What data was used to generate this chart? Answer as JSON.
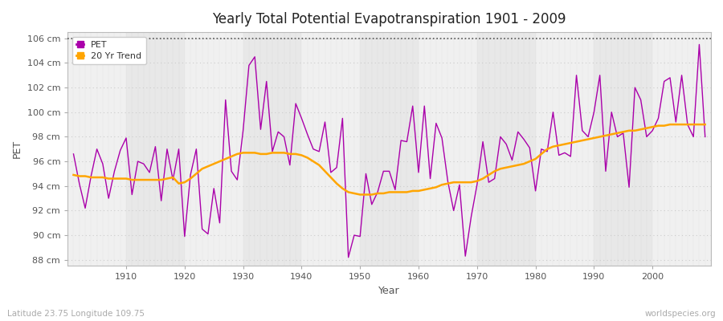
{
  "title": "Yearly Total Potential Evapotranspiration 1901 - 2009",
  "xlabel": "Year",
  "ylabel": "PET",
  "subtitle": "Latitude 23.75 Longitude 109.75",
  "watermark": "worldspecies.org",
  "pet_color": "#AA00AA",
  "trend_color": "#FFA500",
  "background_color": "#FFFFFF",
  "plot_bg_color": "#E8E8E8",
  "col_band_color": "#F0F0F0",
  "ylim": [
    87.5,
    106.5
  ],
  "yticks": [
    88,
    90,
    92,
    94,
    96,
    98,
    100,
    102,
    104,
    106
  ],
  "ytick_labels": [
    "88 cm",
    "90 cm",
    "92 cm",
    "94 cm",
    "96 cm",
    "98 cm",
    "100 cm",
    "102 cm",
    "104 cm",
    "106 cm"
  ],
  "hline_y": 106,
  "xlim": [
    1900,
    2010
  ],
  "xticks": [
    1910,
    1920,
    1930,
    1940,
    1950,
    1960,
    1970,
    1980,
    1990,
    2000
  ],
  "years": [
    1901,
    1902,
    1903,
    1904,
    1905,
    1906,
    1907,
    1908,
    1909,
    1910,
    1911,
    1912,
    1913,
    1914,
    1915,
    1916,
    1917,
    1918,
    1919,
    1920,
    1921,
    1922,
    1923,
    1924,
    1925,
    1926,
    1927,
    1928,
    1929,
    1930,
    1931,
    1932,
    1933,
    1934,
    1935,
    1936,
    1937,
    1938,
    1939,
    1940,
    1941,
    1942,
    1943,
    1944,
    1945,
    1946,
    1947,
    1948,
    1949,
    1950,
    1951,
    1952,
    1953,
    1954,
    1955,
    1956,
    1957,
    1958,
    1959,
    1960,
    1961,
    1962,
    1963,
    1964,
    1965,
    1966,
    1967,
    1968,
    1969,
    1970,
    1971,
    1972,
    1973,
    1974,
    1975,
    1976,
    1977,
    1978,
    1979,
    1980,
    1981,
    1982,
    1983,
    1984,
    1985,
    1986,
    1987,
    1988,
    1989,
    1990,
    1991,
    1992,
    1993,
    1994,
    1995,
    1996,
    1997,
    1998,
    1999,
    2000,
    2001,
    2002,
    2003,
    2004,
    2005,
    2006,
    2007,
    2008,
    2009
  ],
  "pet_values": [
    96.6,
    94.2,
    92.2,
    94.8,
    97.0,
    95.8,
    93.0,
    95.2,
    96.9,
    97.9,
    93.3,
    96.0,
    95.8,
    95.1,
    97.2,
    92.8,
    97.0,
    94.5,
    97.0,
    89.9,
    94.9,
    97.0,
    90.5,
    90.1,
    93.8,
    91.0,
    101.0,
    95.2,
    94.5,
    98.5,
    103.8,
    104.5,
    98.6,
    102.5,
    96.8,
    98.4,
    98.0,
    95.7,
    100.7,
    99.5,
    98.2,
    97.0,
    96.8,
    99.2,
    95.1,
    95.5,
    99.5,
    88.2,
    90.0,
    89.9,
    95.0,
    92.5,
    93.5,
    95.2,
    95.2,
    93.7,
    97.7,
    97.6,
    100.5,
    95.1,
    100.5,
    94.6,
    99.1,
    97.9,
    94.4,
    92.0,
    94.1,
    88.3,
    91.5,
    94.1,
    97.6,
    94.3,
    94.6,
    98.0,
    97.4,
    96.1,
    98.4,
    97.8,
    97.1,
    93.6,
    97.0,
    96.8,
    100.0,
    96.5,
    96.7,
    96.4,
    103.0,
    98.5,
    98.0,
    100.0,
    103.0,
    95.2,
    100.0,
    98.0,
    98.3,
    93.9,
    102.0,
    101.0,
    98.0,
    98.5,
    99.5,
    102.5,
    102.8,
    99.2,
    103.0,
    99.0,
    98.0,
    105.5,
    98.0
  ],
  "trend_years": [
    1901,
    1902,
    1903,
    1904,
    1905,
    1906,
    1907,
    1908,
    1909,
    1910,
    1911,
    1912,
    1913,
    1914,
    1915,
    1916,
    1917,
    1918,
    1919,
    1920,
    1921,
    1922,
    1923,
    1924,
    1925,
    1926,
    1927,
    1928,
    1929,
    1930,
    1931,
    1932,
    1933,
    1934,
    1935,
    1936,
    1937,
    1938,
    1939,
    1940,
    1941,
    1942,
    1943,
    1944,
    1945,
    1946,
    1947,
    1948,
    1949,
    1950,
    1951,
    1952,
    1953,
    1954,
    1955,
    1956,
    1957,
    1958,
    1959,
    1960,
    1961,
    1962,
    1963,
    1964,
    1965,
    1966,
    1967,
    1968,
    1969,
    1970,
    1971,
    1972,
    1973,
    1974,
    1975,
    1976,
    1977,
    1978,
    1979,
    1980,
    1981,
    1982,
    1983,
    1984,
    1985,
    1986,
    1987,
    1988,
    1989,
    1990,
    1991,
    1992,
    1993,
    1994,
    1995,
    1996,
    1997,
    1998,
    1999,
    2000,
    2001,
    2002,
    2003,
    2004,
    2005,
    2006,
    2007,
    2008,
    2009
  ],
  "trend_values": [
    94.9,
    94.8,
    94.8,
    94.7,
    94.7,
    94.7,
    94.6,
    94.6,
    94.6,
    94.6,
    94.5,
    94.5,
    94.5,
    94.5,
    94.5,
    94.5,
    94.6,
    94.7,
    94.2,
    94.3,
    94.6,
    95.0,
    95.4,
    95.6,
    95.8,
    96.0,
    96.2,
    96.4,
    96.6,
    96.7,
    96.7,
    96.7,
    96.6,
    96.6,
    96.7,
    96.7,
    96.7,
    96.6,
    96.6,
    96.5,
    96.3,
    96.0,
    95.7,
    95.2,
    94.7,
    94.2,
    93.8,
    93.5,
    93.4,
    93.3,
    93.3,
    93.3,
    93.4,
    93.4,
    93.5,
    93.5,
    93.5,
    93.5,
    93.6,
    93.6,
    93.7,
    93.8,
    93.9,
    94.1,
    94.2,
    94.3,
    94.3,
    94.3,
    94.3,
    94.4,
    94.6,
    94.9,
    95.2,
    95.4,
    95.5,
    95.6,
    95.7,
    95.8,
    96.0,
    96.2,
    96.6,
    97.0,
    97.2,
    97.3,
    97.4,
    97.5,
    97.6,
    97.7,
    97.8,
    97.9,
    98.0,
    98.1,
    98.2,
    98.3,
    98.4,
    98.5,
    98.5,
    98.6,
    98.7,
    98.8,
    98.9,
    98.9,
    99.0,
    99.0,
    99.0,
    99.0,
    99.0,
    99.0,
    99.0
  ]
}
